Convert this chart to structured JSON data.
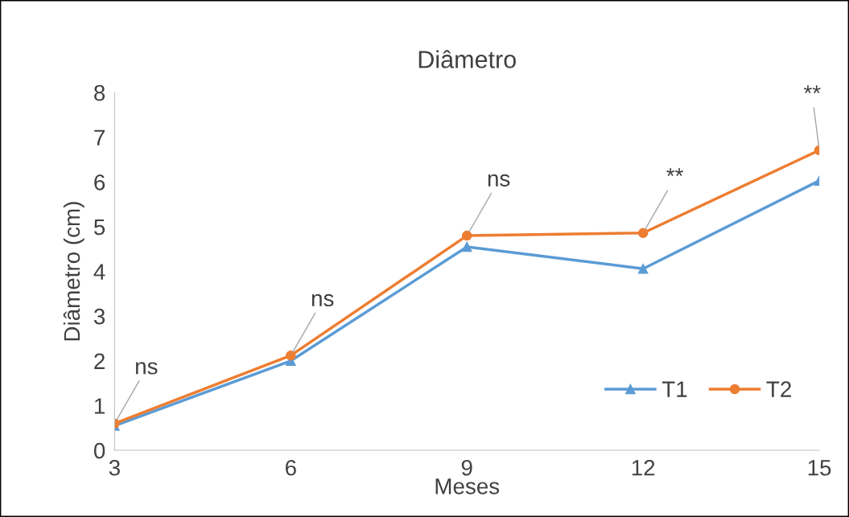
{
  "chart_data": {
    "type": "line",
    "title": "Diâmetro",
    "xlabel": "Meses",
    "ylabel": "Diâmetro (cm)",
    "categories": [
      "3",
      "6",
      "9",
      "12",
      "15"
    ],
    "series": [
      {
        "name": "T1",
        "color": "#5b9bd5",
        "marker": "triangle",
        "values": [
          0.55,
          2.0,
          4.55,
          4.06,
          6.03
        ]
      },
      {
        "name": "T2",
        "color": "#ed7d31",
        "marker": "circle",
        "values": [
          0.6,
          2.12,
          4.8,
          4.86,
          6.71
        ]
      }
    ],
    "ylim": [
      0,
      8
    ],
    "yticks": [
      0,
      1,
      2,
      3,
      4,
      5,
      6,
      7,
      8
    ],
    "grid": false,
    "legend": "bottom right",
    "annotations": [
      {
        "text": "ns",
        "x": "3",
        "y": 0.6
      },
      {
        "text": "ns",
        "x": "6",
        "y": 2.12
      },
      {
        "text": "ns",
        "x": "9",
        "y": 4.8
      },
      {
        "text": "**",
        "x": "12",
        "y": 4.86
      },
      {
        "text": "**",
        "x": "15",
        "y": 6.71
      }
    ]
  }
}
